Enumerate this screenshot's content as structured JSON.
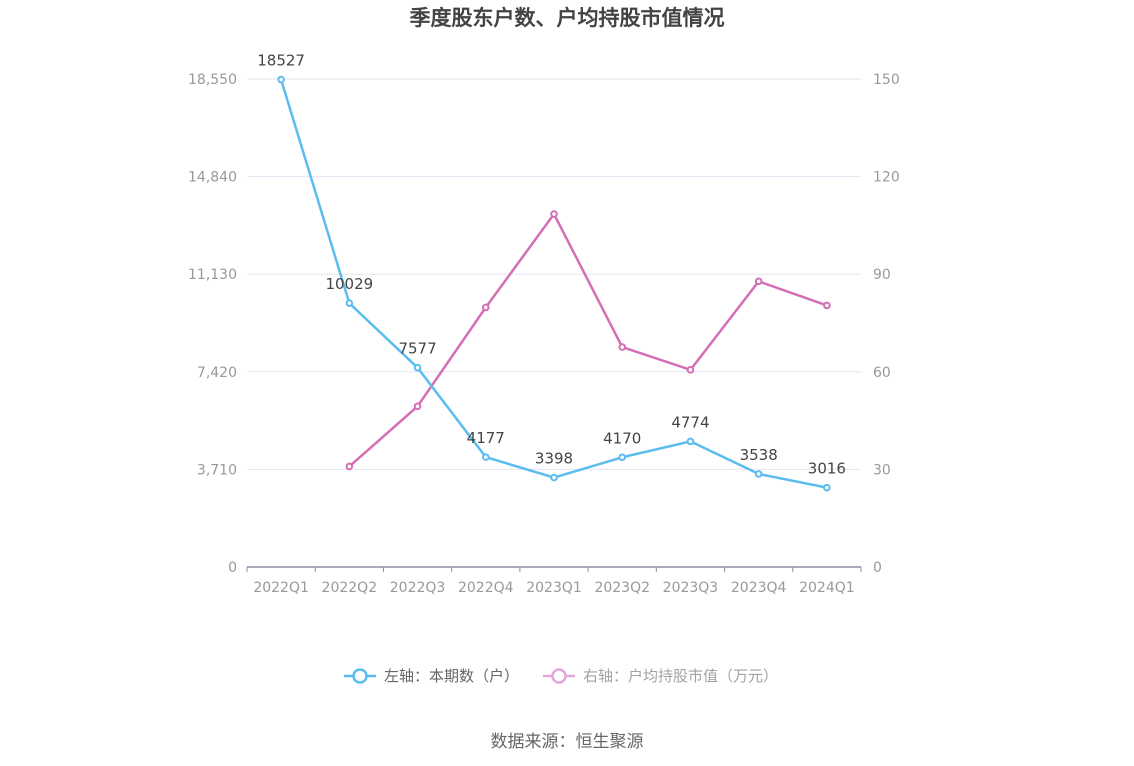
{
  "chart_data": {
    "type": "line",
    "title": "季度股东户数、户均持股市值情况",
    "categories": [
      "2022Q1",
      "2022Q2",
      "2022Q3",
      "2022Q4",
      "2023Q1",
      "2023Q2",
      "2023Q3",
      "2023Q4",
      "2024Q1"
    ],
    "left_axis": {
      "ylim": [
        0,
        18550
      ],
      "ticks": [
        "0",
        "3,710",
        "7,420",
        "11,130",
        "14,840",
        "18,550"
      ]
    },
    "right_axis": {
      "ylim": [
        0,
        150
      ],
      "ticks": [
        "0",
        "30",
        "60",
        "90",
        "120",
        "150"
      ]
    },
    "series": [
      {
        "name": "左轴：本期数（户）",
        "axis": "left",
        "color": "#5bbcf0",
        "values": [
          18527,
          10029,
          7577,
          4177,
          3398,
          4170,
          4774,
          3538,
          3016
        ],
        "labels": [
          "18527",
          "10029",
          "7577",
          "4177",
          "3398",
          "4170",
          "4774",
          "3538",
          "3016"
        ]
      },
      {
        "name": "右轴：户均持股市值（万元）",
        "axis": "right",
        "color": "#d46fb5",
        "values": [
          null,
          30.9,
          49.4,
          79.8,
          108.5,
          67.6,
          60.6,
          87.8,
          80.4
        ]
      }
    ],
    "grid": true,
    "legend_position": "bottom"
  },
  "source_text": "数据来源：恒生聚源"
}
